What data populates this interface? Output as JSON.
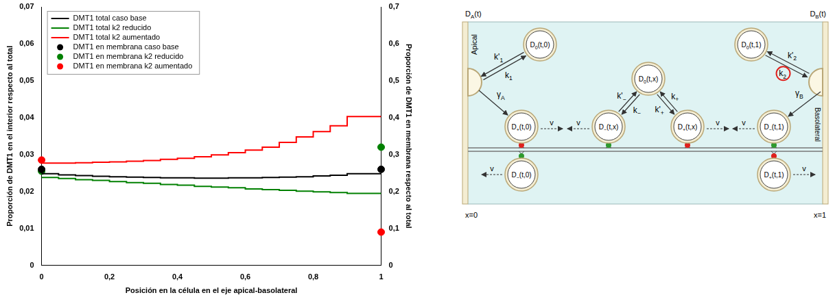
{
  "chart_data": {
    "type": "line",
    "x_label": "Posición en la célula en el eje apical-basolateral",
    "y_label": "Proporción de DMT1 en el interior respecto al total",
    "y2_label": "Proporción de DMT1 en membrana respecto al total",
    "x": [
      0,
      0.05,
      0.1,
      0.15,
      0.2,
      0.25,
      0.3,
      0.35,
      0.4,
      0.45,
      0.5,
      0.55,
      0.6,
      0.65,
      0.7,
      0.75,
      0.8,
      0.85,
      0.9,
      0.95,
      1
    ],
    "xlim": [
      0,
      1
    ],
    "xticks": [
      0,
      {
        "value": 0.2,
        "label": "0,2"
      },
      {
        "value": 0.4,
        "label": "0,4"
      },
      {
        "value": 0.6,
        "label": "0,6"
      },
      {
        "value": 0.8,
        "label": "0,8"
      },
      1
    ],
    "ylim": [
      0,
      0.07
    ],
    "yticks": [
      0,
      {
        "value": 0.01,
        "label": "0,01"
      },
      {
        "value": 0.02,
        "label": "0,02"
      },
      {
        "value": 0.03,
        "label": "0,03"
      },
      {
        "value": 0.04,
        "label": "0,04"
      },
      {
        "value": 0.05,
        "label": "0,05"
      },
      {
        "value": 0.06,
        "label": "0,06"
      },
      {
        "value": 0.07,
        "label": "0,07"
      }
    ],
    "y2lim": [
      0,
      0.7
    ],
    "y2ticks": [
      0,
      {
        "value": 0.1,
        "label": "0,1"
      },
      {
        "value": 0.2,
        "label": "0,2"
      },
      {
        "value": 0.3,
        "label": "0,3"
      },
      {
        "value": 0.4,
        "label": "0,4"
      },
      {
        "value": 0.5,
        "label": "0,5"
      },
      {
        "value": 0.6,
        "label": "0,6"
      },
      {
        "value": 0.7,
        "label": "0,7"
      }
    ],
    "grid": false,
    "legend": "upper left",
    "series": [
      {
        "name": "DMT1 total caso base",
        "color": "#000000",
        "line_style": "stepped",
        "values": [
          0.0252,
          0.0248,
          0.0245,
          0.0243,
          0.0241,
          0.024,
          0.0239,
          0.0238,
          0.0237,
          0.0237,
          0.0236,
          0.0236,
          0.0237,
          0.0237,
          0.0238,
          0.0239,
          0.024,
          0.0242,
          0.0244,
          0.0248,
          0.0248
        ]
      },
      {
        "name": "DMT1 total k2 reducido",
        "color": "#008000",
        "line_style": "stepped",
        "values": [
          0.024,
          0.0238,
          0.0235,
          0.0232,
          0.023,
          0.0227,
          0.0224,
          0.0222,
          0.0219,
          0.0217,
          0.0214,
          0.0212,
          0.021,
          0.0207,
          0.0205,
          0.0203,
          0.0201,
          0.0199,
          0.0197,
          0.0195,
          0.0195
        ]
      },
      {
        "name": "DMT1 total k2 aumentado",
        "color": "#ff0000",
        "line_style": "stepped",
        "values": [
          0.028,
          0.0277,
          0.0277,
          0.0278,
          0.0279,
          0.028,
          0.0282,
          0.0284,
          0.0287,
          0.029,
          0.0294,
          0.0299,
          0.0305,
          0.0312,
          0.032,
          0.0333,
          0.0348,
          0.0362,
          0.0378,
          0.0403,
          0.0403
        ]
      },
      {
        "name": "DMT1 en membrana caso base",
        "color": "#000000",
        "type": "scatter",
        "marker": "circle",
        "axis": "y2",
        "x": [
          0,
          1
        ],
        "values": [
          0.26,
          0.26
        ]
      },
      {
        "name": "DMT1 en membrana k2 reducido",
        "color": "#008000",
        "type": "scatter",
        "marker": "circle",
        "axis": "y2",
        "x": [
          0,
          1
        ],
        "values": [
          0.255,
          0.32
        ]
      },
      {
        "name": "DMT1 en membrana k2 aumentado",
        "color": "#ff0000",
        "type": "scatter",
        "marker": "circle",
        "axis": "y2",
        "x": [
          0,
          1
        ],
        "values": [
          0.285,
          0.09
        ]
      }
    ]
  },
  "diagram": {
    "apical": {
      "name": "Apical",
      "amount": {
        "text": "D",
        "sub": "A",
        "after": "(t)"
      },
      "position": "x=0"
    },
    "basolateral": {
      "name": "Basolateral",
      "amount": {
        "text": "D",
        "sub": "B",
        "after": "(t)"
      },
      "position": "x=1"
    },
    "vesicles": [
      {
        "text": "D",
        "sub": "0",
        "after": "(t,0)"
      },
      {
        "text": "D",
        "sub": "0",
        "after": "(t,x)"
      },
      {
        "text": "D",
        "sub": "0",
        "after": "(t,1)"
      },
      {
        "text": "D",
        "sub": "+",
        "after": "(t,0)",
        "color": "#e0211d"
      },
      {
        "text": "D",
        "sub": "−",
        "after": "(t,x)",
        "color": "#2e9a2e"
      },
      {
        "text": "D",
        "sub": "+",
        "after": "(t,x)",
        "color": "#e0211d"
      },
      {
        "text": "D",
        "sub": "−",
        "after": "(t,1)",
        "color": "#2e9a2e"
      },
      {
        "text": "D",
        "sub": "−",
        "after": "(t,0)",
        "color": "#2e9a2e"
      },
      {
        "text": "D",
        "sub": "+",
        "after": "(t,1)",
        "color": "#e0211d"
      }
    ],
    "exchanges": [
      [
        {
          "text": "k'",
          "sub": "1"
        },
        {
          "text": "k",
          "sub": "1"
        }
      ],
      [
        {
          "text": "k'",
          "sub": "−"
        },
        {
          "text": "k",
          "sub": "−"
        }
      ],
      [
        {
          "text": "k",
          "sub": "+"
        },
        {
          "text": "k'",
          "sub": "+"
        }
      ],
      [
        {
          "text": "k'",
          "sub": "2"
        },
        {
          "text": "k",
          "sub": "2",
          "highlighted": true
        }
      ]
    ],
    "deliveries": [
      {
        "text": "γ",
        "sub": "A"
      },
      {
        "text": "γ",
        "sub": "B"
      }
    ],
    "transport": [
      {
        "text": "v"
      },
      {
        "text": "v"
      },
      {
        "text": "v"
      },
      {
        "text": "v"
      },
      {
        "text": "v"
      },
      {
        "text": "v"
      }
    ]
  }
}
